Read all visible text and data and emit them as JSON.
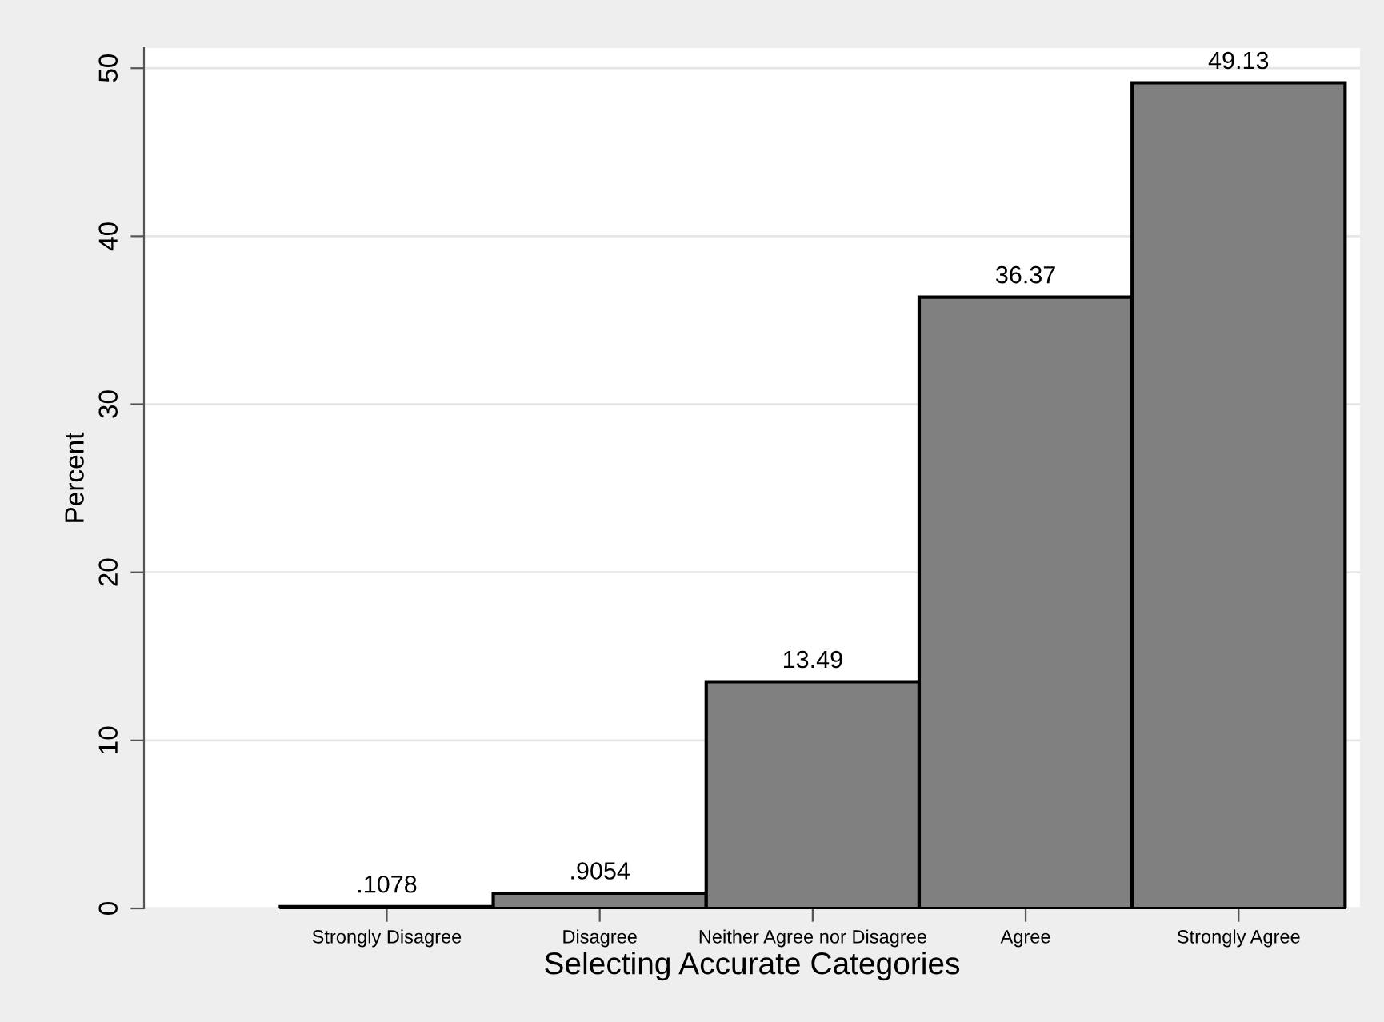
{
  "chart_data": {
    "type": "bar",
    "categories": [
      "Strongly Disagree",
      "Disagree",
      "Neither Agree nor Disagree",
      "Agree",
      "Strongly Agree"
    ],
    "values": [
      0.1078,
      0.9054,
      13.49,
      36.37,
      49.13
    ],
    "value_labels": [
      ".1078",
      ".9054",
      "13.49",
      "36.37",
      "49.13"
    ],
    "color": "#808080",
    "xlabel": "Selecting Accurate Categories",
    "ylabel": "Percent",
    "ylim": [
      0,
      51.2
    ],
    "yticks": [
      0,
      10,
      20,
      30,
      40,
      50
    ],
    "grid": "y"
  }
}
